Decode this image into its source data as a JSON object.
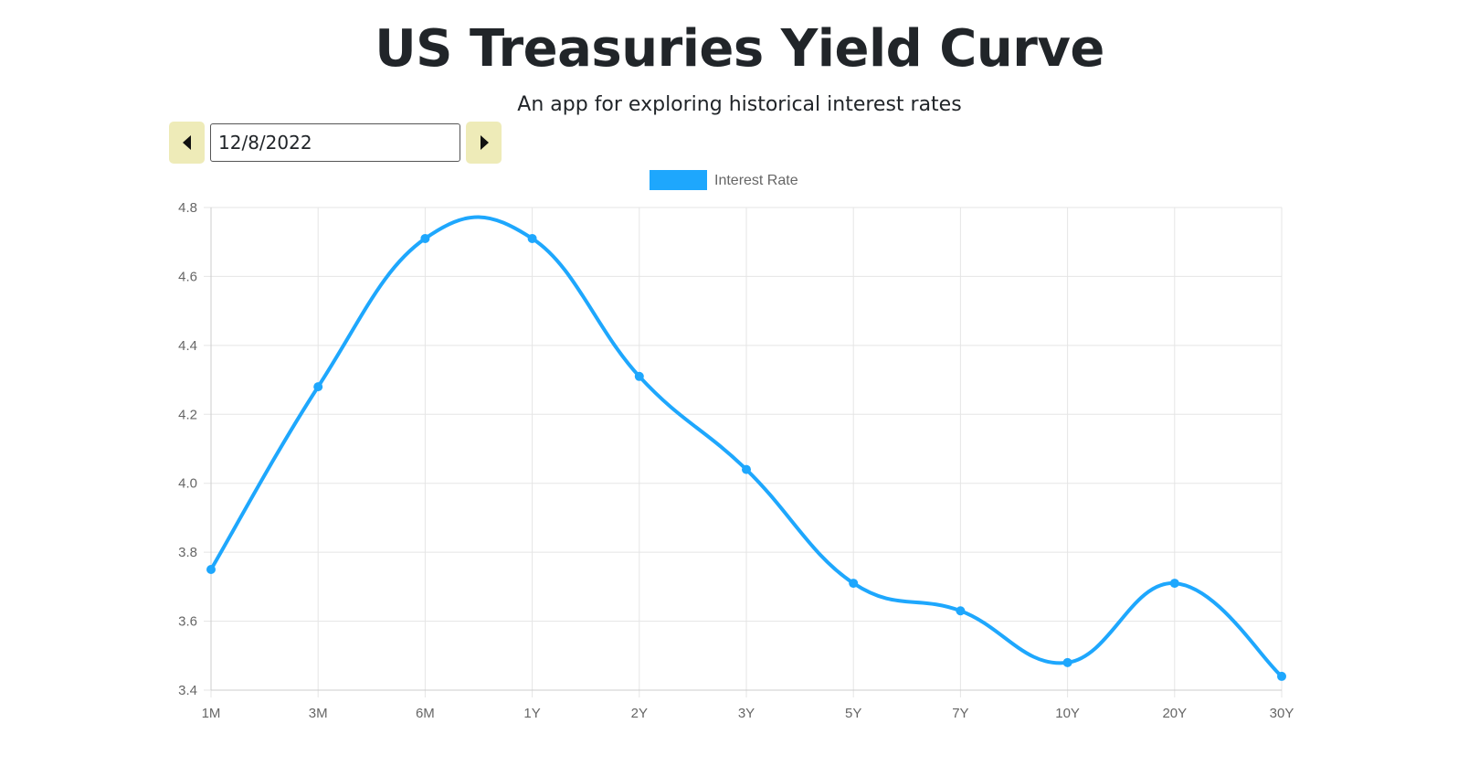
{
  "header": {
    "title": "US Treasuries Yield Curve",
    "subtitle": "An app for exploring historical interest rates"
  },
  "date_picker": {
    "value": "12/8/2022",
    "prev_icon": "caret-left-icon",
    "next_icon": "caret-right-icon",
    "button_color": "#eeebb8"
  },
  "chart_data": {
    "type": "line",
    "categories": [
      "1M",
      "3M",
      "6M",
      "1Y",
      "2Y",
      "3Y",
      "5Y",
      "7Y",
      "10Y",
      "20Y",
      "30Y"
    ],
    "series": [
      {
        "name": "Interest Rate",
        "values": [
          3.75,
          4.28,
          4.71,
          4.71,
          4.31,
          4.04,
          3.71,
          3.63,
          3.48,
          3.71,
          3.44
        ],
        "color": "#1ea7fd"
      }
    ],
    "yticks": [
      "3.4",
      "3.6",
      "3.8",
      "4.0",
      "4.2",
      "4.4",
      "4.6",
      "4.8"
    ],
    "ylim": [
      3.4,
      4.8
    ],
    "grid": true,
    "smooth": true,
    "legend_position": "top-center"
  }
}
